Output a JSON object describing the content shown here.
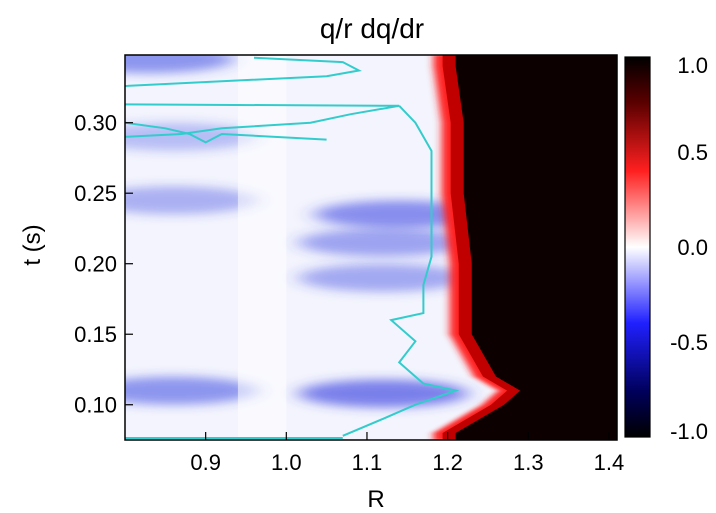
{
  "chart_data": {
    "type": "heatmap",
    "title": "q/r dq/dr",
    "xlabel": "R",
    "ylabel": "t (s)",
    "xlim": [
      0.8,
      1.41
    ],
    "ylim": [
      0.075,
      0.348
    ],
    "xticks": [
      "0.9",
      "1.0",
      "1.1",
      "1.2",
      "1.3",
      "1.4"
    ],
    "xtick_values": [
      0.9,
      1.0,
      1.1,
      1.2,
      1.3,
      1.4
    ],
    "yticks": [
      "0.10",
      "0.15",
      "0.20",
      "0.25",
      "0.30"
    ],
    "ytick_values": [
      0.1,
      0.15,
      0.2,
      0.25,
      0.3
    ],
    "colorbar": {
      "range": [
        -1.0,
        1.0
      ],
      "ticks": [
        "1.0",
        "0.5",
        "0.0",
        "-0.5",
        "-1.0"
      ],
      "tick_values": [
        1.0,
        0.5,
        0.0,
        -0.5,
        -1.0
      ],
      "colors": [
        "#000000",
        "#1a1aff",
        "#ffffff",
        "#ff1a1a",
        "#1a0000"
      ]
    },
    "contour_color": "#33cccc",
    "contour_level": 0.0,
    "t_axis": [
      0.08,
      0.1,
      0.11,
      0.12,
      0.15,
      0.2,
      0.25,
      0.3,
      0.34
    ],
    "red_edge_R": [
      1.2,
      1.26,
      1.28,
      1.25,
      1.22,
      1.22,
      1.21,
      1.21,
      1.2
    ],
    "zero_contour": [
      {
        "t": 0.078,
        "R": 1.07
      },
      {
        "t": 0.09,
        "R": 1.12
      },
      {
        "t": 0.1,
        "R": 1.16
      },
      {
        "t": 0.11,
        "R": 1.21
      },
      {
        "t": 0.115,
        "R": 1.17
      },
      {
        "t": 0.125,
        "R": 1.15
      },
      {
        "t": 0.13,
        "R": 1.14
      },
      {
        "t": 0.145,
        "R": 1.16
      },
      {
        "t": 0.16,
        "R": 1.13
      },
      {
        "t": 0.165,
        "R": 1.17
      },
      {
        "t": 0.185,
        "R": 1.17
      },
      {
        "t": 0.205,
        "R": 1.18
      },
      {
        "t": 0.23,
        "R": 1.18
      },
      {
        "t": 0.255,
        "R": 1.18
      },
      {
        "t": 0.28,
        "R": 1.18
      },
      {
        "t": 0.3,
        "R": 1.16
      },
      {
        "t": 0.312,
        "R": 1.14
      }
    ],
    "zero_contour_islands": [
      [
        {
          "t": 0.313,
          "R": 0.8
        },
        {
          "t": 0.312,
          "R": 1.14
        },
        {
          "t": 0.306,
          "R": 1.08
        },
        {
          "t": 0.3,
          "R": 1.03
        },
        {
          "t": 0.296,
          "R": 0.92
        },
        {
          "t": 0.292,
          "R": 0.87
        },
        {
          "t": 0.29,
          "R": 0.8
        }
      ],
      [
        {
          "t": 0.3,
          "R": 0.8
        },
        {
          "t": 0.296,
          "R": 0.85
        },
        {
          "t": 0.292,
          "R": 0.88
        },
        {
          "t": 0.286,
          "R": 0.9
        },
        {
          "t": 0.292,
          "R": 0.92
        },
        {
          "t": 0.288,
          "R": 1.05
        }
      ],
      [
        {
          "t": 0.346,
          "R": 0.96
        },
        {
          "t": 0.343,
          "R": 1.07
        },
        {
          "t": 0.337,
          "R": 1.09
        },
        {
          "t": 0.333,
          "R": 1.05
        },
        {
          "t": 0.326,
          "R": 0.8
        }
      ]
    ],
    "blue_bands": [
      {
        "t": 0.108,
        "R_center": 1.12,
        "strength": 0.85
      },
      {
        "t": 0.11,
        "R_center": 0.86,
        "strength": 0.7
      },
      {
        "t": 0.19,
        "R_center": 1.12,
        "strength": 0.55
      },
      {
        "t": 0.215,
        "R_center": 1.12,
        "strength": 0.6
      },
      {
        "t": 0.235,
        "R_center": 1.14,
        "strength": 0.75
      },
      {
        "t": 0.245,
        "R_center": 0.86,
        "strength": 0.5
      },
      {
        "t": 0.29,
        "R_center": 0.86,
        "strength": 0.4
      },
      {
        "t": 0.345,
        "R_center": 0.83,
        "strength": 0.7
      }
    ]
  }
}
